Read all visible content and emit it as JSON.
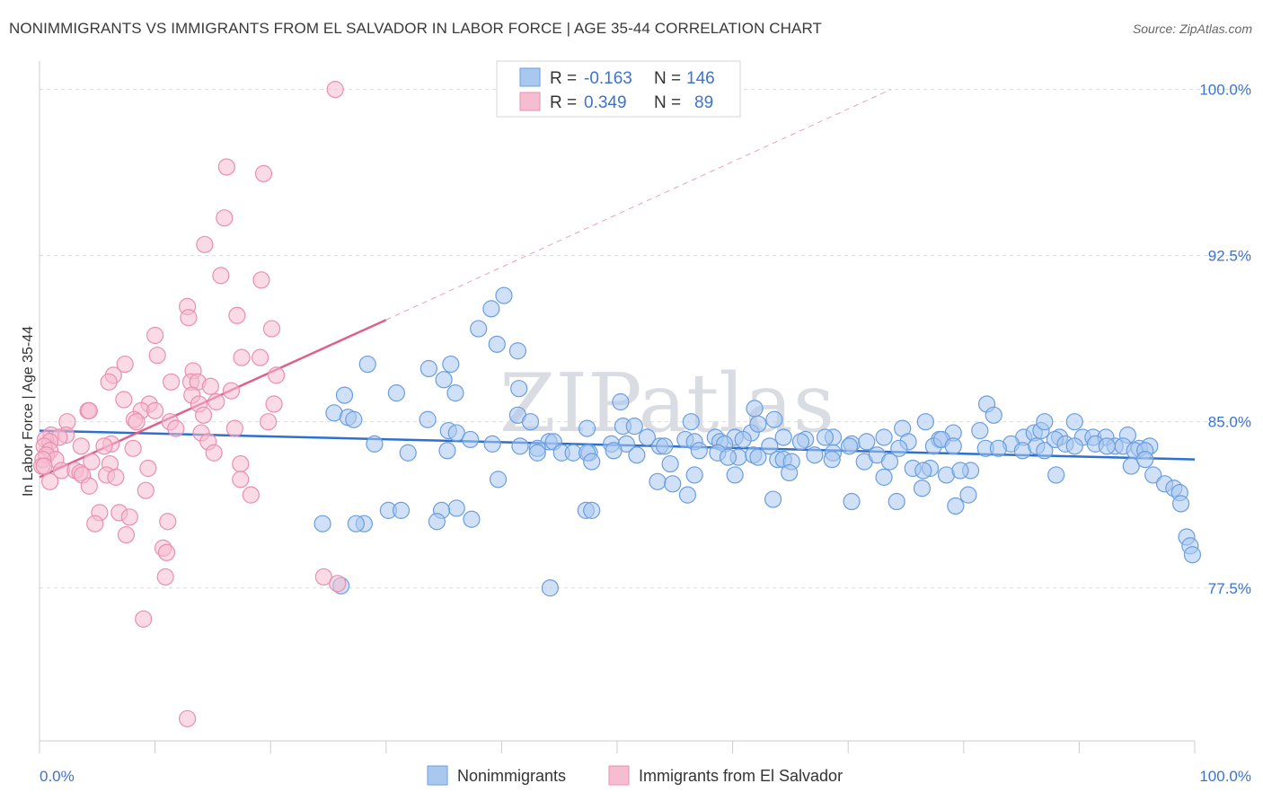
{
  "title": "NONIMMIGRANTS VS IMMIGRANTS FROM EL SALVADOR IN LABOR FORCE | AGE 35-44 CORRELATION CHART",
  "source": "Source: ZipAtlas.com",
  "watermark": "ZIPatlas",
  "colors": {
    "blue_fill": "#a9c8f0",
    "blue_stroke": "#6a9ee0",
    "blue_line": "#2f6fd0",
    "pink_fill": "#f6bcd0",
    "pink_stroke": "#ea8fae",
    "pink_line": "#e0608c",
    "tick_text": "#3b73d1"
  },
  "stats_box": {
    "rows": [
      {
        "r_label": "R =",
        "r_value": "-0.163",
        "n_label": "N =",
        "n_value": "146",
        "color": "blue"
      },
      {
        "r_label": "R =",
        "r_value": "0.349",
        "n_label": "N =",
        "n_value": "89",
        "color": "pink"
      }
    ]
  },
  "legend": {
    "items": [
      {
        "label": "Nonimmigrants",
        "color": "blue"
      },
      {
        "label": "Immigrants from El Salvador",
        "color": "pink"
      }
    ]
  },
  "chart_data": {
    "type": "scatter",
    "title": "NONIMMIGRANTS VS IMMIGRANTS FROM EL SALVADOR IN LABOR FORCE | AGE 35-44 CORRELATION CHART",
    "xlabel": "",
    "ylabel": "In Labor Force | Age 35-44",
    "xlim": [
      0,
      100
    ],
    "ylim": [
      70.6,
      101.2
    ],
    "x_tick_labels": [
      "0.0%",
      "100.0%"
    ],
    "y_ticks": [
      {
        "value": 100.0,
        "label": "100.0%"
      },
      {
        "value": 92.5,
        "label": "92.5%"
      },
      {
        "value": 85.0,
        "label": "85.0%"
      },
      {
        "value": 77.5,
        "label": "77.5%"
      }
    ],
    "grid": true,
    "series": [
      {
        "name": "Nonimmigrants",
        "color": "blue",
        "trendline": {
          "x": [
            0,
            100
          ],
          "y": [
            84.6,
            83.3
          ]
        },
        "points": [
          [
            40.2,
            90.7
          ],
          [
            39.1,
            90.1
          ],
          [
            38.0,
            89.2
          ],
          [
            39.6,
            88.5
          ],
          [
            41.4,
            88.2
          ],
          [
            28.4,
            87.6
          ],
          [
            35.6,
            87.6
          ],
          [
            33.7,
            87.4
          ],
          [
            35.0,
            86.9
          ],
          [
            41.5,
            86.5
          ],
          [
            30.9,
            86.3
          ],
          [
            36.0,
            86.3
          ],
          [
            26.4,
            86.2
          ],
          [
            50.3,
            85.9
          ],
          [
            61.9,
            85.6
          ],
          [
            25.5,
            85.4
          ],
          [
            26.7,
            85.2
          ],
          [
            27.2,
            85.1
          ],
          [
            33.6,
            85.1
          ],
          [
            41.4,
            85.3
          ],
          [
            47.4,
            84.7
          ],
          [
            50.5,
            84.8
          ],
          [
            51.5,
            84.8
          ],
          [
            56.4,
            85.0
          ],
          [
            58.5,
            84.3
          ],
          [
            61.6,
            84.5
          ],
          [
            62.2,
            84.9
          ],
          [
            63.6,
            85.1
          ],
          [
            66.3,
            84.2
          ],
          [
            68.7,
            84.3
          ],
          [
            74.7,
            84.7
          ],
          [
            76.7,
            85.0
          ],
          [
            79.1,
            84.5
          ],
          [
            81.4,
            84.6
          ],
          [
            82.0,
            85.8
          ],
          [
            82.6,
            85.3
          ],
          [
            85.2,
            84.3
          ],
          [
            86.1,
            84.5
          ],
          [
            86.7,
            84.6
          ],
          [
            87.0,
            85.0
          ],
          [
            88.3,
            84.3
          ],
          [
            89.6,
            85.0
          ],
          [
            90.3,
            84.3
          ],
          [
            91.2,
            84.3
          ],
          [
            94.2,
            84.4
          ],
          [
            35.4,
            84.6
          ],
          [
            36.1,
            84.5
          ],
          [
            37.3,
            84.2
          ],
          [
            42.5,
            85.0
          ],
          [
            44.1,
            84.1
          ],
          [
            44.5,
            84.1
          ],
          [
            52.6,
            84.3
          ],
          [
            55.9,
            84.2
          ],
          [
            58.9,
            84.1
          ],
          [
            60.2,
            84.3
          ],
          [
            64.4,
            84.3
          ],
          [
            65.9,
            84.1
          ],
          [
            68.0,
            84.3
          ],
          [
            70.3,
            84.0
          ],
          [
            71.6,
            84.1
          ],
          [
            73.1,
            84.3
          ],
          [
            75.2,
            84.1
          ],
          [
            77.9,
            84.2
          ],
          [
            84.1,
            84.0
          ],
          [
            87.9,
            84.2
          ],
          [
            88.8,
            84.0
          ],
          [
            92.3,
            84.3
          ],
          [
            93.1,
            83.9
          ],
          [
            93.8,
            83.9
          ],
          [
            95.2,
            83.8
          ],
          [
            96.1,
            83.9
          ],
          [
            29.0,
            84.0
          ],
          [
            39.2,
            84.0
          ],
          [
            41.6,
            83.9
          ],
          [
            43.1,
            83.8
          ],
          [
            49.5,
            84.0
          ],
          [
            50.8,
            84.0
          ],
          [
            53.7,
            83.9
          ],
          [
            54.1,
            83.9
          ],
          [
            56.7,
            84.1
          ],
          [
            59.3,
            84.0
          ],
          [
            60.9,
            84.2
          ],
          [
            63.2,
            83.9
          ],
          [
            68.7,
            83.6
          ],
          [
            70.1,
            83.9
          ],
          [
            74.4,
            83.8
          ],
          [
            77.4,
            83.9
          ],
          [
            78.1,
            84.2
          ],
          [
            79.1,
            83.9
          ],
          [
            81.9,
            83.8
          ],
          [
            83.0,
            83.8
          ],
          [
            85.1,
            83.7
          ],
          [
            86.3,
            83.9
          ],
          [
            87.0,
            83.7
          ],
          [
            89.6,
            83.9
          ],
          [
            91.4,
            84.0
          ],
          [
            92.4,
            83.9
          ],
          [
            94.8,
            83.7
          ],
          [
            95.7,
            83.7
          ],
          [
            43.1,
            83.6
          ],
          [
            45.2,
            83.6
          ],
          [
            46.2,
            83.6
          ],
          [
            47.6,
            83.6
          ],
          [
            49.7,
            83.7
          ],
          [
            51.7,
            83.5
          ],
          [
            57.1,
            83.7
          ],
          [
            58.7,
            83.6
          ],
          [
            60.5,
            83.4
          ],
          [
            61.8,
            83.5
          ],
          [
            63.9,
            83.3
          ],
          [
            67.1,
            83.5
          ],
          [
            68.6,
            83.3
          ],
          [
            71.4,
            83.2
          ],
          [
            72.5,
            83.5
          ],
          [
            73.6,
            83.2
          ],
          [
            35.3,
            83.7
          ],
          [
            47.4,
            83.6
          ],
          [
            31.9,
            83.6
          ],
          [
            47.8,
            83.2
          ],
          [
            54.6,
            83.1
          ],
          [
            59.6,
            83.4
          ],
          [
            62.2,
            83.4
          ],
          [
            64.4,
            83.3
          ],
          [
            65.1,
            83.2
          ],
          [
            75.6,
            82.9
          ],
          [
            77.1,
            82.9
          ],
          [
            80.6,
            82.8
          ],
          [
            94.5,
            83.0
          ],
          [
            95.7,
            83.3
          ],
          [
            56.7,
            82.6
          ],
          [
            60.2,
            82.6
          ],
          [
            64.9,
            82.7
          ],
          [
            73.1,
            82.5
          ],
          [
            76.5,
            82.8
          ],
          [
            78.5,
            82.6
          ],
          [
            79.7,
            82.8
          ],
          [
            88.0,
            82.6
          ],
          [
            96.4,
            82.6
          ],
          [
            97.4,
            82.2
          ],
          [
            98.2,
            82.0
          ],
          [
            98.7,
            81.8
          ],
          [
            39.7,
            82.4
          ],
          [
            53.5,
            82.3
          ],
          [
            54.8,
            82.2
          ],
          [
            76.4,
            82.0
          ],
          [
            80.4,
            81.7
          ],
          [
            56.1,
            81.7
          ],
          [
            63.5,
            81.5
          ],
          [
            70.3,
            81.4
          ],
          [
            74.2,
            81.4
          ],
          [
            79.3,
            81.2
          ],
          [
            98.8,
            81.3
          ],
          [
            36.1,
            81.1
          ],
          [
            34.8,
            81.0
          ],
          [
            30.2,
            81.0
          ],
          [
            31.3,
            81.0
          ],
          [
            47.3,
            81.0
          ],
          [
            47.8,
            81.0
          ],
          [
            37.4,
            80.6
          ],
          [
            34.4,
            80.5
          ],
          [
            28.1,
            80.4
          ],
          [
            24.5,
            80.4
          ],
          [
            27.4,
            80.4
          ],
          [
            99.3,
            79.8
          ],
          [
            99.6,
            79.4
          ],
          [
            99.8,
            79.0
          ],
          [
            44.2,
            77.5
          ],
          [
            26.1,
            77.6
          ]
        ]
      },
      {
        "name": "Immigrants from El Salvador",
        "color": "pink",
        "trendline": {
          "x": [
            0,
            30.0
          ],
          "y": [
            82.5,
            89.6
          ]
        },
        "trend_extension": {
          "x": [
            30.0,
            73.7
          ],
          "y": [
            89.6,
            100.0
          ]
        },
        "points": [
          [
            25.6,
            100.0
          ],
          [
            16.2,
            96.5
          ],
          [
            19.4,
            96.2
          ],
          [
            16.0,
            94.2
          ],
          [
            14.3,
            93.0
          ],
          [
            15.7,
            91.6
          ],
          [
            19.2,
            91.4
          ],
          [
            12.8,
            90.2
          ],
          [
            17.1,
            89.8
          ],
          [
            12.9,
            89.7
          ],
          [
            20.1,
            89.2
          ],
          [
            10.0,
            88.9
          ],
          [
            10.2,
            88.0
          ],
          [
            19.1,
            87.9
          ],
          [
            17.5,
            87.9
          ],
          [
            7.4,
            87.6
          ],
          [
            13.3,
            87.3
          ],
          [
            20.5,
            87.1
          ],
          [
            6.4,
            87.1
          ],
          [
            13.1,
            86.8
          ],
          [
            6.0,
            86.8
          ],
          [
            11.4,
            86.8
          ],
          [
            13.7,
            86.8
          ],
          [
            14.8,
            86.6
          ],
          [
            16.6,
            86.4
          ],
          [
            13.2,
            86.2
          ],
          [
            7.3,
            86.0
          ],
          [
            9.5,
            85.8
          ],
          [
            13.8,
            85.8
          ],
          [
            15.3,
            85.9
          ],
          [
            20.3,
            85.8
          ],
          [
            4.2,
            85.5
          ],
          [
            4.3,
            85.5
          ],
          [
            8.8,
            85.5
          ],
          [
            10.0,
            85.5
          ],
          [
            14.2,
            85.3
          ],
          [
            8.2,
            85.1
          ],
          [
            2.4,
            85.0
          ],
          [
            8.4,
            85.0
          ],
          [
            11.3,
            85.0
          ],
          [
            19.8,
            85.0
          ],
          [
            11.8,
            84.7
          ],
          [
            16.9,
            84.7
          ],
          [
            14.0,
            84.5
          ],
          [
            1.0,
            84.4
          ],
          [
            2.3,
            84.4
          ],
          [
            1.7,
            84.3
          ],
          [
            0.5,
            84.2
          ],
          [
            0.9,
            84.1
          ],
          [
            6.2,
            84.0
          ],
          [
            14.6,
            84.1
          ],
          [
            3.6,
            83.9
          ],
          [
            5.6,
            83.9
          ],
          [
            0.4,
            83.9
          ],
          [
            8.1,
            83.8
          ],
          [
            0.9,
            83.7
          ],
          [
            15.1,
            83.6
          ],
          [
            0.6,
            83.5
          ],
          [
            1.4,
            83.3
          ],
          [
            0.3,
            83.3
          ],
          [
            4.5,
            83.2
          ],
          [
            6.1,
            83.1
          ],
          [
            17.4,
            83.1
          ],
          [
            0.2,
            83.0
          ],
          [
            0.4,
            83.0
          ],
          [
            9.4,
            82.9
          ],
          [
            1.9,
            82.8
          ],
          [
            3.1,
            82.8
          ],
          [
            3.5,
            82.7
          ],
          [
            3.7,
            82.6
          ],
          [
            5.8,
            82.6
          ],
          [
            6.6,
            82.5
          ],
          [
            17.4,
            82.4
          ],
          [
            0.9,
            82.3
          ],
          [
            4.3,
            82.1
          ],
          [
            9.2,
            81.9
          ],
          [
            18.3,
            81.7
          ],
          [
            5.2,
            80.9
          ],
          [
            6.9,
            80.9
          ],
          [
            7.8,
            80.7
          ],
          [
            4.8,
            80.4
          ],
          [
            11.1,
            80.5
          ],
          [
            7.5,
            79.9
          ],
          [
            10.7,
            79.3
          ],
          [
            11.0,
            79.1
          ],
          [
            10.9,
            78.0
          ],
          [
            24.6,
            78.0
          ],
          [
            25.8,
            77.7
          ],
          [
            9.0,
            76.1
          ],
          [
            12.8,
            71.6
          ]
        ]
      }
    ]
  }
}
